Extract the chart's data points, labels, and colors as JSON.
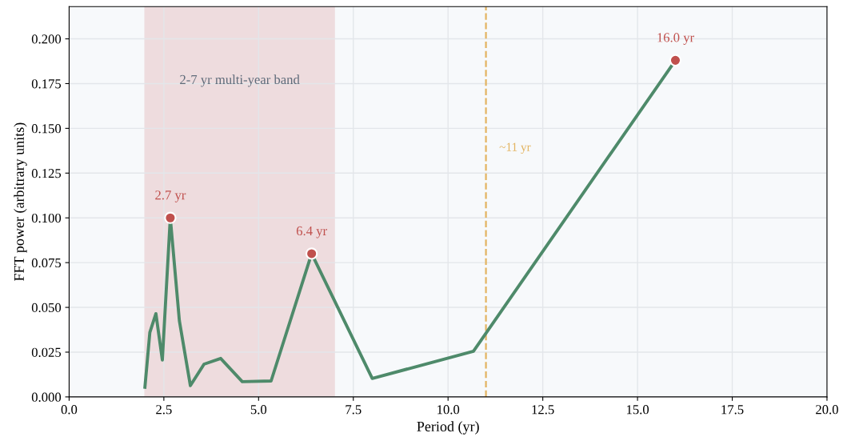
{
  "chart_data": {
    "type": "line",
    "xlabel": "Period (yr)",
    "ylabel": "FFT power (arbitrary units)",
    "xlim": [
      0.0,
      20.0
    ],
    "ylim": [
      0.0,
      0.218
    ],
    "xticks": [
      {
        "value": 0,
        "label": "0.0"
      },
      2.5,
      {
        "value": 5,
        "label": "5.0"
      },
      7.5,
      {
        "value": 10,
        "label": "10.0"
      },
      12.5,
      {
        "value": 15,
        "label": "15.0"
      },
      17.5,
      {
        "value": 20,
        "label": "20.0"
      }
    ],
    "yticks": [
      {
        "value": 0,
        "label": "0.000"
      },
      {
        "value": 0.025,
        "label": "0.025"
      },
      {
        "value": 0.05,
        "label": "0.050"
      },
      {
        "value": 0.075,
        "label": "0.075"
      },
      {
        "value": 0.1,
        "label": "0.100"
      },
      {
        "value": 0.125,
        "label": "0.125"
      },
      {
        "value": 0.15,
        "label": "0.150"
      },
      {
        "value": 0.175,
        "label": "0.175"
      },
      {
        "value": 0.2,
        "label": "0.200"
      }
    ],
    "grid": true,
    "line_style": "solid",
    "marker": "none",
    "series": [
      {
        "color": "#4e8a6a",
        "x": [
          2.0,
          2.13,
          2.29,
          2.46,
          2.67,
          2.91,
          3.2,
          3.56,
          4.0,
          4.57,
          5.33,
          6.4,
          8.0,
          10.67,
          16.0
        ],
        "values": [
          0.0054,
          0.036,
          0.0465,
          0.0206,
          0.1,
          0.0425,
          0.0063,
          0.0183,
          0.0215,
          0.0085,
          0.0089,
          0.08,
          0.0103,
          0.0255,
          0.188
        ]
      },
      {
        "type": "scatter",
        "color": "#c0504d",
        "marker": "circle",
        "x": [
          2.67,
          6.4,
          16.0
        ],
        "values": [
          0.1,
          0.08,
          0.188
        ]
      }
    ],
    "annotations": [
      {
        "text": "2.7 yr",
        "x": 2.67,
        "y": 0.1
      },
      {
        "text": "6.4 yr",
        "x": 6.4,
        "y": 0.08
      },
      {
        "text": "16.0 yr",
        "x": 16.0,
        "y": 0.188
      }
    ],
    "bands": [
      {
        "axis": "x",
        "from": 2.0,
        "to": 7.0,
        "label": "2-7 yr multi-year band",
        "color": "#eedcde"
      }
    ],
    "ref_lines": [
      {
        "axis": "x",
        "value": 11.0,
        "label": "~11 yr",
        "color": "#e3b461",
        "line_style": "dashed"
      }
    ]
  }
}
